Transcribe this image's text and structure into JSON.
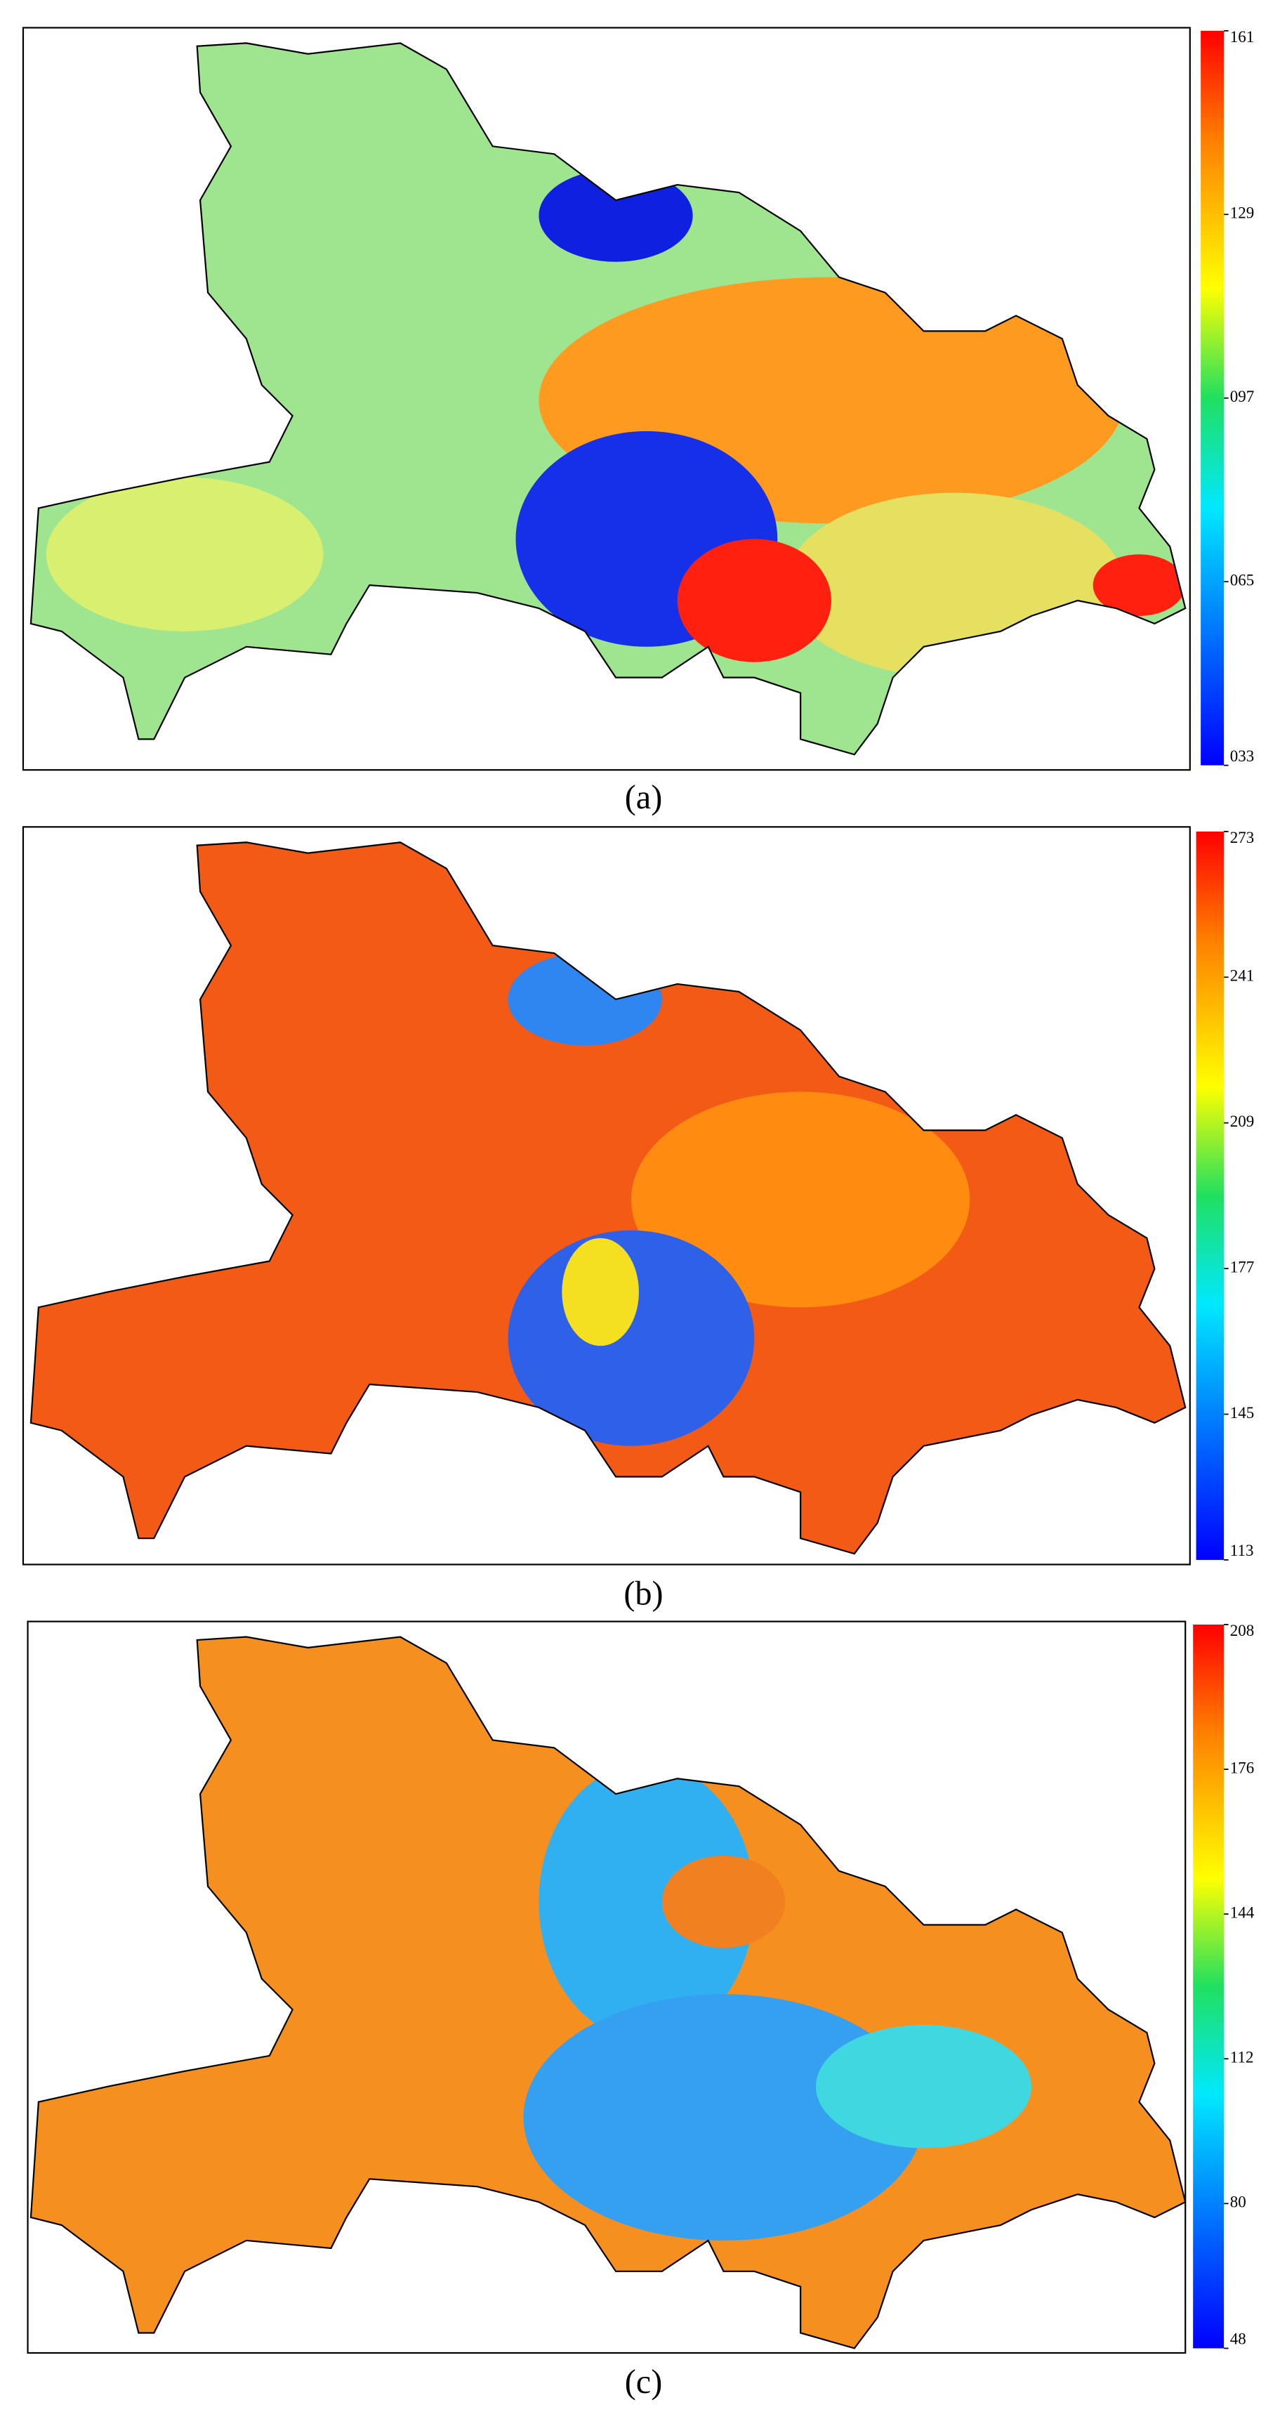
{
  "panels": [
    {
      "label": "(a)",
      "colorbar_ticks": [
        {
          "value": 33,
          "label": "033"
        },
        {
          "value": 65,
          "label": "065"
        },
        {
          "value": 97,
          "label": "097"
        },
        {
          "value": 129,
          "label": "129"
        },
        161
      ]
    },
    {
      "label": "(b)",
      "colorbar_ticks": [
        113,
        145,
        177,
        209,
        241,
        273
      ]
    },
    {
      "label": "(c)",
      "colorbar_ticks": [
        48,
        80,
        112,
        144,
        176,
        208
      ]
    }
  ]
}
